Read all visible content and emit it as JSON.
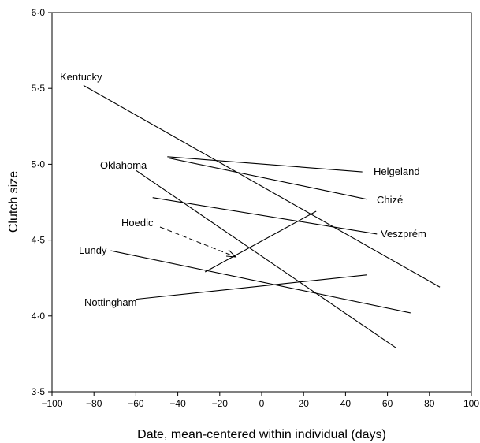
{
  "chart_data": {
    "type": "line",
    "title": "",
    "xlabel": "Date, mean-centered within individual (days)",
    "ylabel": "Clutch size",
    "xlim": [
      -100,
      100
    ],
    "ylim": [
      3.5,
      6.0
    ],
    "x_ticks": [
      -100,
      -80,
      -60,
      -40,
      -20,
      0,
      20,
      40,
      60,
      80,
      100
    ],
    "x_tick_labels": [
      "−100",
      "−80",
      "−60",
      "−40",
      "−20",
      "0",
      "20",
      "40",
      "60",
      "80",
      "100"
    ],
    "y_ticks": [
      3.5,
      4.0,
      4.5,
      5.0,
      5.5,
      6.0
    ],
    "y_tick_labels": [
      "3·5",
      "4·0",
      "4·5",
      "5·0",
      "5·5",
      "6·0"
    ],
    "grid": false,
    "legend": "none",
    "series": [
      {
        "name": "Kentucky",
        "x": [
          -85,
          85
        ],
        "y": [
          5.52,
          4.19
        ]
      },
      {
        "name": "Helgeland",
        "x": [
          -45,
          48
        ],
        "y": [
          5.05,
          4.95
        ]
      },
      {
        "name": "Chizé",
        "x": [
          -44,
          50
        ],
        "y": [
          5.04,
          4.77
        ]
      },
      {
        "name": "Oklahoma",
        "x": [
          -60,
          64
        ],
        "y": [
          4.96,
          3.79
        ]
      },
      {
        "name": "Veszprém",
        "x": [
          -52,
          55
        ],
        "y": [
          4.78,
          4.54
        ]
      },
      {
        "name": "Hoedic",
        "x": [
          -27,
          26
        ],
        "y": [
          4.29,
          4.69
        ]
      },
      {
        "name": "Lundy",
        "x": [
          -72,
          71
        ],
        "y": [
          4.43,
          4.02
        ]
      },
      {
        "name": "Nottingham",
        "x": [
          -60,
          50
        ],
        "y": [
          4.11,
          4.27
        ]
      }
    ]
  }
}
